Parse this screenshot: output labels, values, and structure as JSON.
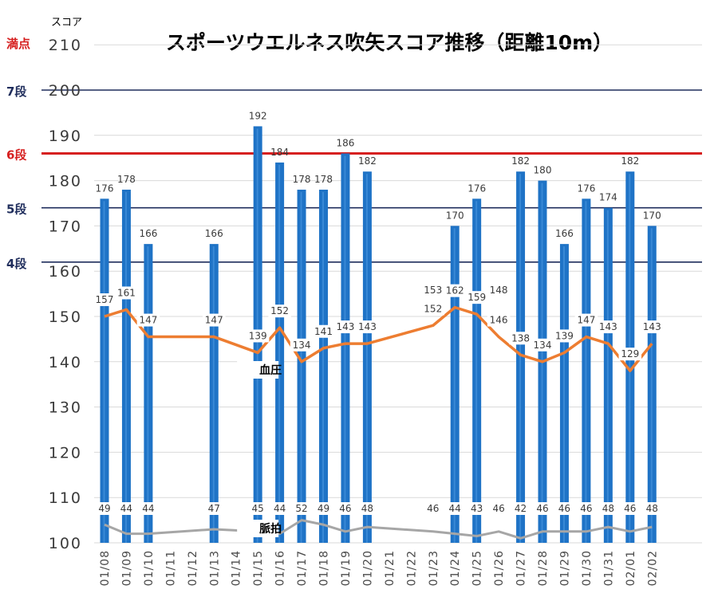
{
  "chart_data": {
    "type": "bar",
    "title": "スポーツウエルネス吹矢スコア推移（距離10m）",
    "ylabel": "スコア",
    "ylim": [
      100,
      210
    ],
    "yticks": [
      100,
      110,
      120,
      130,
      140,
      150,
      160,
      170,
      180,
      190,
      200,
      210
    ],
    "categories": [
      "01/08",
      "01/09",
      "01/10",
      "01/11",
      "01/12",
      "01/13",
      "01/14",
      "01/15",
      "01/16",
      "01/17",
      "01/18",
      "01/19",
      "01/20",
      "01/21",
      "01/22",
      "01/23",
      "01/24",
      "01/25",
      "01/26",
      "01/27",
      "01/28",
      "01/29",
      "01/30",
      "01/31",
      "02/01",
      "02/02"
    ],
    "series": [
      {
        "kind": "bar",
        "color": "#1f73c6",
        "values": [
          176,
          178,
          166,
          null,
          null,
          166,
          null,
          192,
          184,
          178,
          178,
          186,
          182,
          null,
          null,
          null,
          170,
          176,
          null,
          182,
          180,
          166,
          176,
          174,
          182,
          170
        ]
      },
      {
        "kind": "line",
        "name": "血圧",
        "color": "#ed7d31",
        "values": [
          157,
          161,
          147,
          null,
          null,
          147,
          null,
          139,
          152,
          134,
          141,
          143,
          143,
          null,
          null,
          152,
          162,
          159,
          146,
          138,
          134,
          139,
          147,
          143,
          129,
          143
        ],
        "plot_values": [
          150,
          151.5,
          145.5,
          null,
          null,
          145.5,
          null,
          142,
          147.5,
          140,
          143,
          144,
          144,
          null,
          null,
          148,
          152,
          150.5,
          145.5,
          141.5,
          140,
          142,
          145.5,
          144,
          138,
          144
        ],
        "labels": [
          "157",
          "161",
          "147",
          null,
          null,
          "147",
          null,
          "139",
          "152",
          "134",
          "141",
          "143",
          "143",
          null,
          null,
          "152",
          "162",
          "159",
          "146",
          "138",
          "134",
          "139",
          "147",
          "143",
          "129",
          "143"
        ],
        "extra_labels": [
          {
            "category": "01/23",
            "text": "153"
          },
          {
            "category": "01/26",
            "text": "148"
          }
        ]
      },
      {
        "kind": "line",
        "name": "脈拍",
        "color": "#a6a6a6",
        "values": [
          49,
          44,
          44,
          null,
          null,
          47,
          null,
          45,
          44,
          52,
          49,
          46,
          48,
          null,
          null,
          46,
          44,
          43,
          46,
          42,
          46,
          46,
          46,
          48,
          46,
          48
        ],
        "plot_values": [
          104,
          102,
          102,
          null,
          null,
          103,
          null,
          102.5,
          102,
          105,
          104,
          102.5,
          103.5,
          null,
          null,
          102.5,
          102,
          101.5,
          102.5,
          101,
          102.5,
          102.5,
          102.5,
          103.5,
          102.5,
          103.5
        ]
      }
    ],
    "reference_lines": [
      {
        "label": "7段",
        "value": 200,
        "color": "#1f2d5c"
      },
      {
        "label": "6段",
        "value": 186,
        "color": "#d62020"
      },
      {
        "label": "5段",
        "value": 174,
        "color": "#1f2d5c"
      },
      {
        "label": "4段",
        "value": 162,
        "color": "#1f2d5c"
      },
      {
        "label": "満点",
        "value": 210,
        "color": "#d62020"
      }
    ],
    "grid": true
  }
}
